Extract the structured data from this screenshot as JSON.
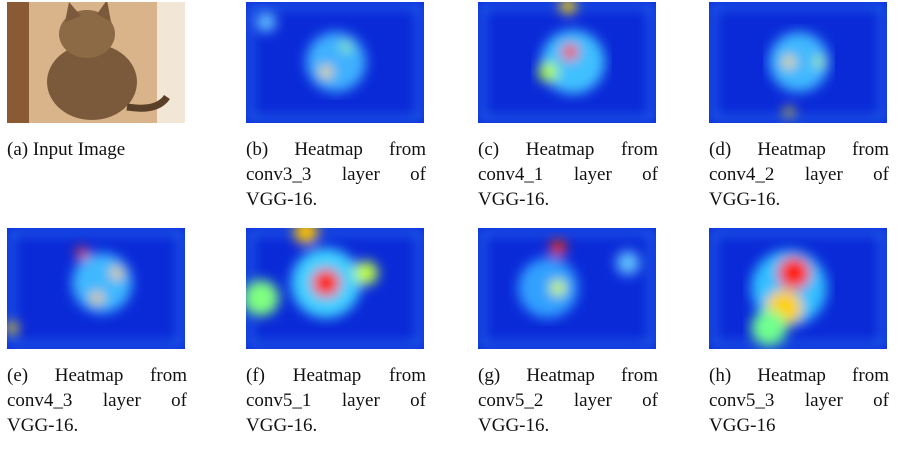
{
  "panels": [
    {
      "caption": "(a) Input Image"
    },
    {
      "caption": "(b) Heatmap from conv3_3 layer of VGG-16."
    },
    {
      "caption": "(c) Heatmap from conv4_1 layer of VGG-16."
    },
    {
      "caption": "(d) Heatmap from conv4_2 layer of VGG-16."
    },
    {
      "caption": "(e) Heatmap from conv4_3 layer of VGG-16."
    },
    {
      "caption": "(f) Heatmap from conv5_1 layer of VGG-16."
    },
    {
      "caption": "(g) Heatmap from conv5_2 layer of VGG-16."
    },
    {
      "caption": "(h) Heatmap from conv5_3 layer of VGG-16"
    }
  ]
}
